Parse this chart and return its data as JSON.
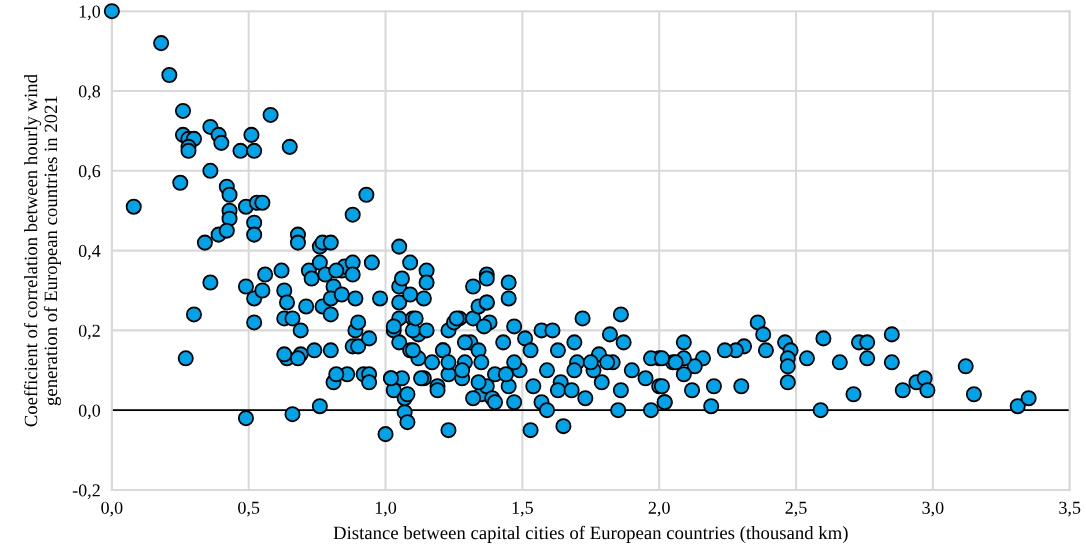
{
  "chart_data": {
    "type": "scatter",
    "xlabel": "Distance between capital cities of European countries (thousand km)",
    "ylabel": "Coefficient of correlation between hourly wind\ngeneration of European countries in 2021",
    "xlim": [
      0,
      3.5
    ],
    "ylim": [
      -0.2,
      1.0
    ],
    "xticks": [
      {
        "value": 0,
        "label": "0,0"
      },
      {
        "value": 0.5,
        "label": "0,5"
      },
      {
        "value": 1,
        "label": "1,0"
      },
      {
        "value": 1.5,
        "label": "1,5"
      },
      {
        "value": 2,
        "label": "2,0"
      },
      {
        "value": 2.5,
        "label": "2,5"
      },
      {
        "value": 3,
        "label": "3,0"
      },
      {
        "value": 3.5,
        "label": "3,5"
      }
    ],
    "yticks": [
      {
        "value": -0.2,
        "label": "-0,2"
      },
      {
        "value": 0,
        "label": "0,0"
      },
      {
        "value": 0.2,
        "label": "0,2"
      },
      {
        "value": 0.4,
        "label": "0,4"
      },
      {
        "value": 0.6,
        "label": "0,6"
      },
      {
        "value": 0.8,
        "label": "0,8"
      },
      {
        "value": 1.0,
        "label": "1,0"
      }
    ],
    "grid": true,
    "marker": "circle",
    "legend": false,
    "ref_lines": [
      {
        "axis": "y",
        "value": 0,
        "color": "#000000"
      }
    ],
    "series": [
      {
        "color": "#00a2e8",
        "x": [
          0,
          0.18,
          0.21,
          0.08,
          0.26,
          0.26,
          0.28,
          0.3,
          0.28,
          0.28,
          0.36,
          0.39,
          0.4,
          0.25,
          0.36,
          0.47,
          0.51,
          0.52,
          0.58,
          0.65,
          0.42,
          0.43,
          0.43,
          0.43,
          0.49,
          0.53,
          0.55,
          0.52,
          0.52,
          0.34,
          0.39,
          0.42,
          0.36,
          0.27,
          0.3,
          0.49,
          0.52,
          0.52,
          0.55,
          0.56,
          0.62,
          0.63,
          0.64,
          0.63,
          0.64,
          0.63,
          0.66,
          0.69,
          0.69,
          0.68,
          0.72,
          0.73,
          0.68,
          0.68,
          0.49,
          0.66,
          0.76,
          0.74,
          0.8,
          0.71,
          0.77,
          0.76,
          0.77,
          0.8,
          0.76,
          0.78,
          0.81,
          0.8,
          0.8,
          0.84,
          0.84,
          0.85,
          0.82,
          0.88,
          0.88,
          0.88,
          0.89,
          0.89,
          0.9,
          0.88,
          0.9,
          0.86,
          0.81,
          0.82,
          0.92,
          0.94,
          0.94,
          0.93,
          0.95,
          0.94,
          1.0,
          1.02,
          1.03,
          0.98,
          1.03,
          1.05,
          1.05,
          1.05,
          1.05,
          1.05,
          1.06,
          1.07,
          1.08,
          1.07,
          1.09,
          1.09,
          1.1,
          1.09,
          1.12,
          1.12,
          1.14,
          1.14,
          1.15,
          1.15,
          1.17,
          1.19,
          1.21,
          1.23,
          1.23,
          1.25,
          1.27,
          1.28,
          1.29,
          1.31,
          1.32,
          1.32,
          1.34,
          1.34,
          1.35,
          1.37,
          1.37,
          1.37,
          1.38,
          1.39,
          1.4,
          1.53,
          1.65,
          1.47,
          1.45,
          1.45,
          1.37,
          1.37,
          1.36,
          1.26,
          1.57,
          1.61,
          1.72,
          1.86,
          1.82,
          1.87,
          1.69,
          1.63,
          1.7,
          1.78,
          1.59,
          1.64,
          1.73,
          1.85,
          1.97,
          2.02,
          2.0,
          1.9,
          1.95,
          1.79,
          1.86,
          1.57,
          1.59,
          1.54,
          1.47,
          1.45,
          1.44,
          1.4,
          1.34,
          1.32,
          1.28,
          1.23,
          1.19,
          1.13,
          1.02,
          1.08,
          1.29,
          1.1,
          1.1,
          1.15,
          1.21,
          1.23,
          1.35,
          1.49,
          1.51,
          1.53,
          1.47,
          1.43,
          1.83,
          1.81,
          1.76,
          1.75,
          1.69,
          1.63,
          1.68,
          2.0,
          1.97,
          2.05,
          1.06,
          1.11,
          1.03,
          2.36,
          2.38,
          2.39,
          2.46,
          2.48,
          2.47,
          2.47,
          2.47,
          2.54,
          2.6,
          2.59,
          2.66,
          2.71,
          2.73,
          2.76,
          2.76,
          2.85,
          2.85,
          2.89,
          2.94,
          2.97,
          2.98,
          3.12,
          3.15,
          3.31,
          3.35,
          2.31,
          2.28,
          2.24,
          2.3,
          2.2,
          2.19,
          2.16,
          2.12,
          2.13,
          2.09,
          2.09,
          2.09,
          2.06,
          2.01,
          2.01,
          2.02
        ],
        "values": [
          1.0,
          0.92,
          0.84,
          0.51,
          0.75,
          0.69,
          0.68,
          0.68,
          0.66,
          0.65,
          0.71,
          0.69,
          0.67,
          0.57,
          0.6,
          0.65,
          0.69,
          0.65,
          0.74,
          0.66,
          0.56,
          0.54,
          0.5,
          0.48,
          0.51,
          0.52,
          0.52,
          0.47,
          0.44,
          0.42,
          0.44,
          0.45,
          0.32,
          0.13,
          0.24,
          0.31,
          0.28,
          0.22,
          0.3,
          0.34,
          0.35,
          0.3,
          0.27,
          0.23,
          0.13,
          0.14,
          0.23,
          0.2,
          0.14,
          0.13,
          0.35,
          0.33,
          0.44,
          0.42,
          -0.02,
          -0.01,
          0.01,
          0.15,
          0.15,
          0.26,
          0.26,
          0.41,
          0.42,
          0.42,
          0.37,
          0.34,
          0.31,
          0.28,
          0.24,
          0.35,
          0.29,
          0.36,
          0.35,
          0.49,
          0.37,
          0.34,
          0.28,
          0.2,
          0.22,
          0.16,
          0.16,
          0.09,
          0.07,
          0.09,
          0.09,
          0.09,
          0.07,
          0.54,
          0.37,
          0.18,
          -0.06,
          0.08,
          0.05,
          0.28,
          0.2,
          0.41,
          0.31,
          0.27,
          0.23,
          0.17,
          0.08,
          -0.005,
          -0.03,
          0.03,
          0.37,
          0.29,
          0.23,
          0.15,
          0.19,
          0.13,
          0.08,
          0.28,
          0.35,
          0.32,
          0.12,
          0.06,
          0.15,
          -0.05,
          0.2,
          0.22,
          0.23,
          0.08,
          0.12,
          0.17,
          0.31,
          0.23,
          0.26,
          0.15,
          0.04,
          0.06,
          0.34,
          0.27,
          0.22,
          0.03,
          0.09,
          -0.05,
          -0.04,
          0.21,
          0.32,
          0.28,
          0.33,
          0.27,
          0.21,
          0.23,
          0.2,
          0.2,
          0.23,
          0.24,
          0.19,
          0.17,
          0.17,
          0.15,
          0.12,
          0.14,
          0.1,
          0.07,
          0.03,
          0.0,
          0.0,
          0.02,
          0.06,
          0.1,
          0.08,
          0.07,
          0.05,
          0.02,
          0.0,
          0.06,
          0.02,
          0.06,
          0.09,
          0.02,
          0.07,
          0.03,
          0.1,
          0.09,
          0.05,
          0.08,
          0.08,
          0.04,
          0.17,
          0.15,
          0.2,
          0.2,
          0.15,
          0.12,
          0.12,
          0.1,
          0.18,
          0.15,
          0.12,
          0.17,
          0.12,
          0.12,
          0.1,
          0.12,
          0.1,
          0.05,
          0.05,
          0.13,
          0.13,
          0.12,
          0.33,
          0.23,
          0.21,
          0.22,
          0.19,
          0.15,
          0.17,
          0.15,
          0.13,
          0.11,
          0.07,
          0.13,
          0.18,
          0.0,
          0.12,
          0.04,
          0.17,
          0.17,
          0.13,
          0.19,
          0.12,
          0.05,
          0.07,
          0.08,
          0.05,
          0.11,
          0.04,
          0.01,
          0.03,
          0.16,
          0.15,
          0.15,
          0.06,
          0.06,
          0.01,
          0.13,
          0.05,
          0.11,
          0.17,
          0.13,
          0.09,
          0.12,
          0.13,
          0.06,
          0.02
        ]
      }
    ]
  }
}
